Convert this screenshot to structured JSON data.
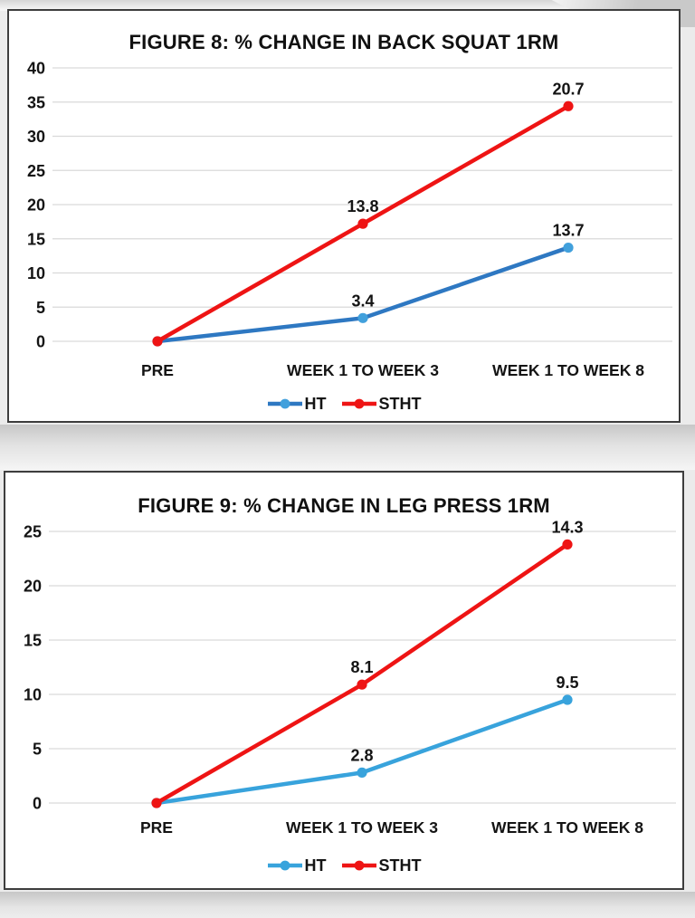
{
  "page": {
    "background_color": "#ebebeb",
    "box_border_color": "#3d3d3d",
    "text_color": "#141414",
    "grid_color": "#d9d9d9"
  },
  "chart_data": [
    {
      "type": "line",
      "title": "FIGURE 8: % CHANGE IN BACK SQUAT 1RM",
      "categories": [
        "PRE",
        "WEEK 1 TO WEEK 3",
        "WEEK 1 TO WEEK 8"
      ],
      "series": [
        {
          "name": "HT",
          "color": "#2E78C2",
          "marker_color": "#41A0DC",
          "values": [
            0,
            3.4,
            13.7
          ],
          "point_labels": [
            null,
            "3.4",
            "13.7"
          ],
          "plotted": [
            0,
            3.4,
            13.7
          ]
        },
        {
          "name": "STHT",
          "color": "#EE1414",
          "marker_color": "#EE1414",
          "values": [
            0,
            13.8,
            20.7
          ],
          "point_labels": [
            null,
            "13.8",
            "20.7"
          ],
          "plotted": [
            0,
            17.2,
            34.4
          ],
          "plotting_note": "plotted stacked on HT"
        }
      ],
      "ylim": [
        0,
        40
      ],
      "yticks": [
        0,
        5,
        10,
        15,
        20,
        25,
        30,
        35,
        40
      ],
      "grid": true,
      "grid_color": "#d9d9d9",
      "legend_position": "bottom"
    },
    {
      "type": "line",
      "title": "FIGURE 9: % CHANGE IN LEG PRESS 1RM",
      "categories": [
        "PRE",
        "WEEK 1 TO WEEK 3",
        "WEEK 1 TO WEEK 8"
      ],
      "series": [
        {
          "name": "HT",
          "color": "#38A3DC",
          "marker_color": "#38A3DC",
          "values": [
            0,
            2.8,
            9.5
          ],
          "point_labels": [
            null,
            "2.8",
            "9.5"
          ],
          "plotted": [
            0,
            2.8,
            9.5
          ]
        },
        {
          "name": "STHT",
          "color": "#EE1414",
          "marker_color": "#EE1414",
          "values": [
            0,
            8.1,
            14.3
          ],
          "point_labels": [
            null,
            "8.1",
            "14.3"
          ],
          "plotted": [
            0,
            10.9,
            23.8
          ],
          "plotting_note": "plotted stacked on HT"
        }
      ],
      "ylim": [
        0,
        25
      ],
      "yticks": [
        0,
        5,
        10,
        15,
        20,
        25
      ],
      "grid": true,
      "grid_color": "#d9d9d9",
      "legend_position": "bottom"
    }
  ]
}
